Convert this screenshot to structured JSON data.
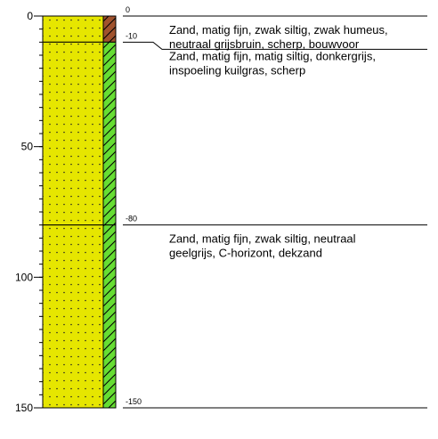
{
  "depth_axis": {
    "ticks": [
      {
        "value": 0,
        "label": "0"
      },
      {
        "value": 50,
        "label": "50"
      },
      {
        "value": 100,
        "label": "100"
      },
      {
        "value": 150,
        "label": "150"
      }
    ],
    "minor_step": 5
  },
  "layers": [
    {
      "top": 0,
      "bottom": 10,
      "top_label": "0",
      "bottom_label": "-10",
      "humus_color": "#a0522d",
      "description": [
        "Zand, matig fijn, zwak siltig, zwak humeus,",
        "neutraal grijsbruin, scherp, bouwvoor"
      ]
    },
    {
      "top": 10,
      "bottom": 80,
      "top_label": "-10",
      "bottom_label": "-80",
      "humus_color": "#66dd33",
      "description": [
        "Zand, matig fijn, matig siltig, donkergrijs,",
        "inspoeling kuilgras, scherp"
      ]
    },
    {
      "top": 80,
      "bottom": 150,
      "top_label": "-80",
      "bottom_label": "-150",
      "humus_color": "#66dd33",
      "description": [
        "Zand, matig fijn, zwak siltig, neutraal",
        "geelgrijs, C-horizont, dekzand"
      ]
    }
  ],
  "colors": {
    "sand": "#e6e600",
    "dots": "#222222",
    "lines": "#000000"
  }
}
